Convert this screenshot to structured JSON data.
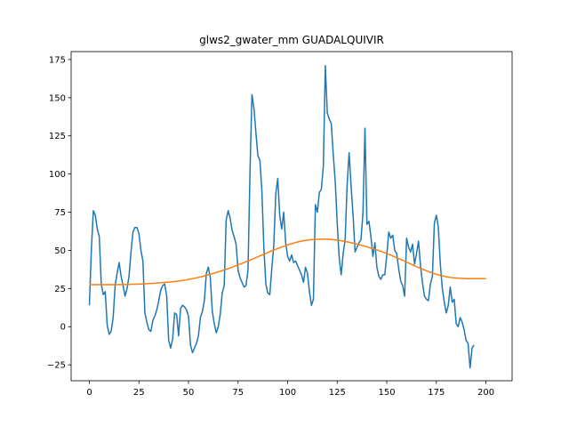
{
  "chart_data": {
    "type": "line",
    "title": "glws2_gwater_mm GUADALQUIVIR",
    "xlabel": "",
    "ylabel": "",
    "xlim": [
      -9.2,
      213.2
    ],
    "ylim": [
      -35.4,
      180.2
    ],
    "x_ticks": [
      0,
      25,
      50,
      75,
      100,
      125,
      150,
      175,
      200
    ],
    "y_ticks": [
      -25,
      0,
      25,
      50,
      75,
      100,
      125,
      150,
      175
    ],
    "grid": false,
    "legend": "none",
    "series": [
      {
        "color": "#1f77b4",
        "values": [
          14,
          50,
          76,
          73,
          64,
          59,
          28,
          21,
          23,
          1,
          -5,
          -3,
          6,
          27,
          35,
          42,
          33,
          27,
          20,
          25,
          33,
          49,
          62,
          65,
          65,
          61,
          50,
          43,
          9,
          3,
          -2,
          -3,
          4,
          7,
          11,
          17,
          24,
          27,
          28,
          20,
          -9,
          -14,
          -8,
          9,
          8,
          -6,
          12,
          14,
          13,
          11,
          7,
          -12,
          -17,
          -14,
          -11,
          -6,
          6,
          10,
          17,
          35,
          39,
          32,
          10,
          2,
          -4,
          0,
          8,
          22,
          27,
          70,
          76,
          71,
          63,
          59,
          54,
          37,
          32,
          29,
          26,
          27,
          37,
          101,
          152,
          143,
          127,
          112,
          109,
          89,
          52,
          28,
          22,
          21,
          38,
          53,
          87,
          97,
          73,
          64,
          75,
          55,
          46,
          43,
          47,
          42,
          43,
          40,
          37,
          34,
          29,
          39,
          35,
          23,
          14,
          18,
          80,
          75,
          88,
          90,
          105,
          171,
          140,
          136,
          133,
          113,
          95,
          68,
          45,
          34,
          48,
          57,
          93,
          114,
          92,
          73,
          49,
          52,
          55,
          57,
          75,
          130,
          67,
          69,
          59,
          46,
          55,
          39,
          33,
          31,
          34,
          34,
          47,
          62,
          58,
          60,
          50,
          48,
          38,
          30,
          27,
          20,
          58,
          52,
          49,
          54,
          41,
          48,
          56,
          40,
          29,
          20,
          18,
          17,
          28,
          33,
          68,
          73,
          65,
          41,
          25,
          16,
          9,
          14,
          26,
          16,
          18,
          2,
          0,
          6,
          3,
          -2,
          -9,
          -11,
          -27,
          -14,
          -12
        ]
      },
      {
        "color": "#ff7f0e",
        "values": [
          27.5,
          27.5,
          27.5,
          27.5,
          27.5,
          27.5,
          27.5,
          27.5,
          27.5,
          27.5,
          27.5,
          27.5,
          27.5,
          27.5,
          27.5,
          27.6,
          27.6,
          27.6,
          27.6,
          27.7,
          27.7,
          27.8,
          27.8,
          27.8,
          27.9,
          27.9,
          28.0,
          28.0,
          28.1,
          28.2,
          28.3,
          28.3,
          28.4,
          28.5,
          28.6,
          28.7,
          28.8,
          28.9,
          29.0,
          29.1,
          29.2,
          29.3,
          29.5,
          29.6,
          29.8,
          29.9,
          30.1,
          30.3,
          30.5,
          30.7,
          31.0,
          31.2,
          31.5,
          31.7,
          32.0,
          32.3,
          32.6,
          32.9,
          33.3,
          33.6,
          34.0,
          34.3,
          34.7,
          35.1,
          35.5,
          35.9,
          36.3,
          36.7,
          37.1,
          37.6,
          38.0,
          38.5,
          39.0,
          39.5,
          40.0,
          40.5,
          41.0,
          41.5,
          42.0,
          42.6,
          43.1,
          43.6,
          44.2,
          44.7,
          45.3,
          45.8,
          46.4,
          46.9,
          47.5,
          48.0,
          48.6,
          49.1,
          49.7,
          50.2,
          50.7,
          51.2,
          51.7,
          52.2,
          52.7,
          53.1,
          53.6,
          54.0,
          54.4,
          54.8,
          55.1,
          55.5,
          55.8,
          56.1,
          56.3,
          56.5,
          56.7,
          56.9,
          57.0,
          57.1,
          57.2,
          57.3,
          57.3,
          57.3,
          57.3,
          57.3,
          57.3,
          57.2,
          57.1,
          57.0,
          56.9,
          56.7,
          56.5,
          56.3,
          56.1,
          55.8,
          55.6,
          55.3,
          55.0,
          54.7,
          54.4,
          54.1,
          53.7,
          53.4,
          53.0,
          52.7,
          52.3,
          51.9,
          51.5,
          51.1,
          50.7,
          50.3,
          49.8,
          49.4,
          48.9,
          48.4,
          47.9,
          47.4,
          46.9,
          46.3,
          45.8,
          45.2,
          44.6,
          44.1,
          43.5,
          42.9,
          42.3,
          41.7,
          41.1,
          40.5,
          39.9,
          39.3,
          38.8,
          38.2,
          37.7,
          37.1,
          36.6,
          36.1,
          35.6,
          35.2,
          34.8,
          34.3,
          34.0,
          33.6,
          33.3,
          33.0,
          32.7,
          32.5,
          32.3,
          32.1,
          32.0,
          31.9,
          31.8,
          31.7,
          31.6,
          31.6,
          31.5,
          31.5,
          31.5,
          31.5,
          31.5,
          31.5,
          31.5,
          31.5,
          31.5,
          31.5,
          31.5
        ]
      }
    ]
  }
}
